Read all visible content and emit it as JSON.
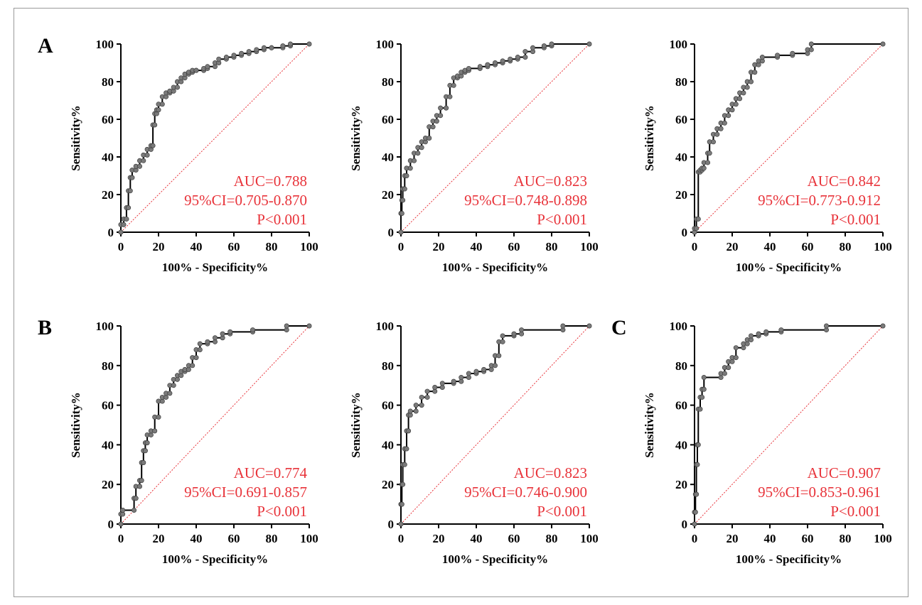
{
  "colors": {
    "curve": "#000000",
    "marker": "#7a7a7a",
    "reference": "#e8333a",
    "stats": "#e8333a",
    "axis": "#000000"
  },
  "chart_data": [
    {
      "type": "line",
      "panel_label": "A",
      "xlabel": "100% - Specificity%",
      "ylabel": "Sensitivity%",
      "xlim": [
        0,
        100
      ],
      "ylim": [
        0,
        100
      ],
      "xticks": [
        "0",
        "20",
        "40",
        "60",
        "80",
        "100"
      ],
      "yticks": [
        "0",
        "20",
        "40",
        "60",
        "80",
        "100"
      ],
      "reference_line": true,
      "stats": [
        "AUC=0.788",
        "95%CI=0.705-0.870",
        "P<0.001"
      ],
      "series": [
        {
          "x": [
            0,
            0,
            1.5,
            1.5,
            3,
            3,
            4,
            4,
            5,
            5,
            6,
            6,
            8,
            8,
            10,
            10,
            12,
            12,
            14,
            14,
            16,
            16,
            17,
            17,
            18,
            18,
            19,
            19,
            20,
            20,
            22,
            22,
            24,
            24,
            26,
            26,
            28,
            28,
            30,
            30,
            32,
            32,
            34,
            34,
            36,
            36,
            38,
            38,
            40,
            40,
            44,
            44,
            46,
            46,
            50,
            50,
            52,
            52,
            56,
            56,
            60,
            60,
            64,
            64,
            68,
            68,
            72,
            72,
            76,
            76,
            80,
            80,
            86,
            86,
            90,
            90,
            100
          ],
          "y": [
            0,
            4,
            4,
            7,
            7,
            13,
            13,
            22,
            22,
            29,
            29,
            33,
            33,
            35,
            35,
            38,
            38,
            41,
            41,
            44,
            44,
            46,
            46,
            57,
            57,
            63,
            63,
            65,
            65,
            68,
            68,
            72,
            72,
            74,
            74,
            75,
            75,
            77,
            77,
            80,
            80,
            82,
            82,
            84,
            84,
            85,
            85,
            86,
            86,
            86,
            86,
            87,
            87,
            88,
            88,
            90,
            90,
            92,
            92,
            93,
            93,
            94,
            94,
            95,
            95,
            96,
            96,
            97,
            97,
            98,
            98,
            98,
            98,
            99,
            99,
            100,
            100
          ]
        }
      ]
    },
    {
      "type": "line",
      "panel_label": "",
      "xlabel": "100% - Specificity%",
      "ylabel": "Sensitivity%",
      "xlim": [
        0,
        100
      ],
      "ylim": [
        0,
        100
      ],
      "xticks": [
        "0",
        "20",
        "40",
        "60",
        "80",
        "100"
      ],
      "yticks": [
        "0",
        "20",
        "40",
        "60",
        "80",
        "100"
      ],
      "reference_line": true,
      "stats": [
        "AUC=0.823",
        "95%CI=0.748-0.898",
        "P<0.001"
      ],
      "series": [
        {
          "x": [
            0,
            0,
            0.5,
            0.5,
            1,
            1,
            2,
            2,
            3,
            3,
            5,
            5,
            7,
            7,
            9,
            9,
            11,
            11,
            13,
            13,
            15,
            15,
            17,
            17,
            19,
            19,
            21,
            21,
            24,
            24,
            26,
            26,
            28,
            28,
            30,
            30,
            32,
            32,
            34,
            34,
            36,
            36,
            42,
            42,
            46,
            46,
            50,
            50,
            54,
            54,
            58,
            58,
            62,
            62,
            66,
            66,
            70,
            70,
            76,
            76,
            80,
            80,
            100
          ],
          "y": [
            0,
            10,
            10,
            17,
            17,
            23,
            23,
            30,
            30,
            34,
            34,
            38,
            38,
            42,
            42,
            45,
            45,
            48,
            48,
            50,
            50,
            56,
            56,
            59,
            59,
            62,
            62,
            66,
            66,
            72,
            72,
            78,
            78,
            82,
            82,
            83,
            83,
            85,
            85,
            86,
            86,
            87,
            87,
            88,
            88,
            89,
            89,
            90,
            90,
            91,
            91,
            92,
            92,
            93,
            93,
            96,
            96,
            98,
            98,
            99,
            99,
            100,
            100
          ]
        }
      ]
    },
    {
      "type": "line",
      "panel_label": "",
      "xlabel": "100% - Specificity%",
      "ylabel": "Sensitivity%",
      "xlim": [
        0,
        100
      ],
      "ylim": [
        0,
        100
      ],
      "xticks": [
        "0",
        "20",
        "40",
        "60",
        "80",
        "100"
      ],
      "yticks": [
        "0",
        "20",
        "40",
        "60",
        "80",
        "100"
      ],
      "reference_line": true,
      "stats": [
        "AUC=0.842",
        "95%CI=0.773-0.912",
        "P<0.001"
      ],
      "series": [
        {
          "x": [
            0,
            0,
            1,
            1,
            2,
            2,
            3,
            3,
            4,
            4,
            5,
            5,
            7,
            7,
            8,
            8,
            10,
            10,
            12,
            12,
            14,
            14,
            16,
            16,
            18,
            18,
            20,
            20,
            22,
            22,
            24,
            24,
            26,
            26,
            28,
            28,
            30,
            30,
            32,
            32,
            34,
            34,
            36,
            36,
            44,
            44,
            52,
            52,
            60,
            60,
            62,
            62,
            100
          ],
          "y": [
            0,
            2,
            2,
            7,
            7,
            32,
            32,
            33,
            33,
            34,
            34,
            37,
            37,
            42,
            42,
            48,
            48,
            52,
            52,
            55,
            55,
            58,
            58,
            62,
            62,
            65,
            65,
            68,
            68,
            71,
            71,
            74,
            74,
            77,
            77,
            80,
            80,
            85,
            85,
            89,
            89,
            91,
            91,
            93,
            93,
            94,
            94,
            95,
            95,
            97,
            97,
            100,
            100
          ]
        }
      ]
    },
    {
      "type": "line",
      "panel_label": "B",
      "xlabel": "100% - Specificity%",
      "ylabel": "Sensitivity%",
      "xlim": [
        0,
        100
      ],
      "ylim": [
        0,
        100
      ],
      "xticks": [
        "0",
        "20",
        "40",
        "60",
        "80",
        "100"
      ],
      "yticks": [
        "0",
        "20",
        "40",
        "60",
        "80",
        "100"
      ],
      "reference_line": true,
      "stats": [
        "AUC=0.774",
        "95%CI=0.691-0.857",
        "P<0.001"
      ],
      "series": [
        {
          "x": [
            0,
            0,
            1,
            1,
            7,
            7,
            8,
            8,
            10,
            10,
            11,
            11,
            12,
            12,
            13,
            13,
            14,
            14,
            16,
            16,
            18,
            18,
            20,
            20,
            22,
            22,
            24,
            24,
            26,
            26,
            28,
            28,
            30,
            30,
            32,
            32,
            34,
            34,
            36,
            36,
            38,
            38,
            40,
            40,
            42,
            42,
            46,
            46,
            50,
            50,
            54,
            54,
            58,
            58,
            70,
            70,
            88,
            88,
            100
          ],
          "y": [
            0,
            5,
            5,
            7,
            7,
            13,
            13,
            19,
            19,
            22,
            22,
            31,
            31,
            37,
            37,
            41,
            41,
            45,
            45,
            47,
            47,
            54,
            54,
            62,
            62,
            64,
            64,
            66,
            66,
            70,
            70,
            73,
            73,
            75,
            75,
            77,
            77,
            78,
            78,
            80,
            80,
            84,
            84,
            88,
            88,
            91,
            91,
            92,
            92,
            94,
            94,
            96,
            96,
            97,
            97,
            98,
            98,
            100,
            100
          ]
        }
      ]
    },
    {
      "type": "line",
      "panel_label": "",
      "xlabel": "100% - Specificity%",
      "ylabel": "Sensitivity%",
      "xlim": [
        0,
        100
      ],
      "ylim": [
        0,
        100
      ],
      "xticks": [
        "0",
        "20",
        "40",
        "60",
        "80",
        "100"
      ],
      "yticks": [
        "0",
        "20",
        "40",
        "60",
        "80",
        "100"
      ],
      "reference_line": true,
      "stats": [
        "AUC=0.823",
        "95%CI=0.746-0.900",
        "P<0.001"
      ],
      "series": [
        {
          "x": [
            0,
            0,
            0.5,
            0.5,
            1,
            1,
            2,
            2,
            3,
            3,
            4,
            4,
            5,
            5,
            8,
            8,
            11,
            11,
            14,
            14,
            18,
            18,
            22,
            22,
            28,
            28,
            32,
            32,
            36,
            36,
            40,
            40,
            44,
            44,
            48,
            48,
            50,
            50,
            52,
            52,
            54,
            54,
            60,
            60,
            64,
            64,
            86,
            86,
            100
          ],
          "y": [
            0,
            10,
            10,
            20,
            20,
            30,
            30,
            38,
            38,
            47,
            47,
            55,
            55,
            57,
            57,
            60,
            60,
            64,
            64,
            67,
            67,
            69,
            69,
            71,
            71,
            72,
            72,
            74,
            74,
            76,
            76,
            77,
            77,
            78,
            78,
            80,
            80,
            85,
            85,
            92,
            92,
            95,
            95,
            96,
            96,
            98,
            98,
            100,
            100
          ]
        }
      ]
    },
    {
      "type": "line",
      "panel_label": "C",
      "xlabel": "100% - Specificity%",
      "ylabel": "Sensitivity%",
      "xlim": [
        0,
        100
      ],
      "ylim": [
        0,
        100
      ],
      "xticks": [
        "0",
        "20",
        "40",
        "60",
        "80",
        "100"
      ],
      "yticks": [
        "0",
        "20",
        "40",
        "60",
        "80",
        "100"
      ],
      "reference_line": true,
      "stats": [
        "AUC=0.907",
        "95%CI=0.853-0.961",
        "P<0.001"
      ],
      "series": [
        {
          "x": [
            0,
            0,
            0.5,
            0.5,
            1,
            1,
            1.5,
            1.5,
            2,
            2,
            3,
            3,
            4,
            4,
            5,
            5,
            14,
            14,
            16,
            16,
            18,
            18,
            20,
            20,
            22,
            22,
            26,
            26,
            28,
            28,
            30,
            30,
            34,
            34,
            38,
            38,
            46,
            46,
            70,
            70,
            100
          ],
          "y": [
            0,
            6,
            6,
            15,
            15,
            30,
            30,
            40,
            40,
            58,
            58,
            64,
            64,
            68,
            68,
            74,
            74,
            76,
            76,
            79,
            79,
            82,
            82,
            84,
            84,
            89,
            89,
            91,
            91,
            93,
            93,
            95,
            95,
            96,
            96,
            97,
            97,
            98,
            98,
            100,
            100
          ]
        }
      ]
    }
  ]
}
